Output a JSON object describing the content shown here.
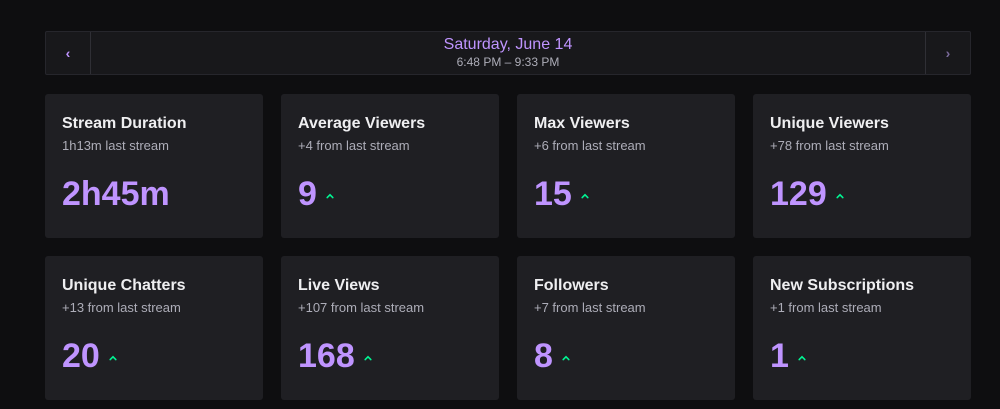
{
  "nav": {
    "prev_icon": "chevron-left-icon",
    "next_icon": "chevron-right-icon",
    "prev_glyph": "‹",
    "next_glyph": "›",
    "date": "Saturday, June 14",
    "time": "6:48 PM – 9:33 PM"
  },
  "colors": {
    "accent": "#bf94ff",
    "up": "#00f593",
    "card_bg": "#1f1f23",
    "page_bg": "#0e0e10"
  },
  "cards": [
    {
      "title": "Stream Duration",
      "sub": "1h13m last stream",
      "value": "2h45m",
      "trend": "none"
    },
    {
      "title": "Average Viewers",
      "sub": "+4 from last stream",
      "value": "9",
      "trend": "up"
    },
    {
      "title": "Max Viewers",
      "sub": "+6 from last stream",
      "value": "15",
      "trend": "up"
    },
    {
      "title": "Unique Viewers",
      "sub": "+78 from last stream",
      "value": "129",
      "trend": "up"
    },
    {
      "title": "Unique Chatters",
      "sub": "+13 from last stream",
      "value": "20",
      "trend": "up"
    },
    {
      "title": "Live Views",
      "sub": "+107 from last stream",
      "value": "168",
      "trend": "up"
    },
    {
      "title": "Followers",
      "sub": "+7 from last stream",
      "value": "8",
      "trend": "up"
    },
    {
      "title": "New Subscriptions",
      "sub": "+1 from last stream",
      "value": "1",
      "trend": "up"
    }
  ]
}
